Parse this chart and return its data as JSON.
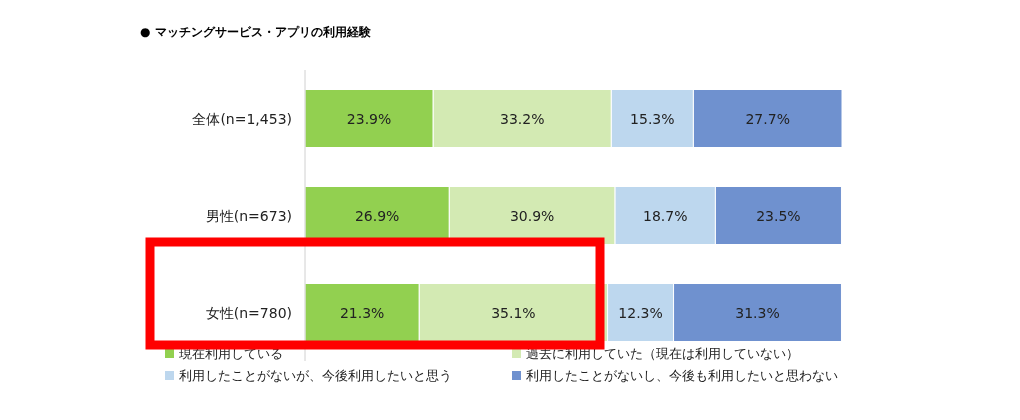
{
  "chart_data": {
    "type": "bar",
    "title": "● マッチングサービス・アプリの利用経験",
    "orientation": "horizontal",
    "stacked": true,
    "legend": "bottom",
    "categories": [
      "全体(n=1,453)",
      "男性(n=673)",
      "女性(n=780)"
    ],
    "series": [
      {
        "name": "現在利用している",
        "color": "#92d050",
        "values": [
          23.9,
          26.9,
          21.3
        ],
        "value_labels": [
          "23.9%",
          "26.9%",
          "21.3%"
        ]
      },
      {
        "name": "過去に利用していた（現在は利用していない）",
        "color": "#d3eab3",
        "values": [
          33.2,
          30.9,
          35.1
        ],
        "value_labels": [
          "33.2%",
          "30.9%",
          "35.1%"
        ]
      },
      {
        "name": "利用したことがないが、今後利用したいと思う",
        "color": "#bdd7ee",
        "values": [
          15.3,
          18.7,
          12.3
        ],
        "value_labels": [
          "15.3%",
          "18.7%",
          "12.3%"
        ]
      },
      {
        "name": "利用したことがないし、今後も利用したいと思わない",
        "color": "#6f91cf",
        "values": [
          27.7,
          23.5,
          31.3
        ],
        "value_labels": [
          "27.7%",
          "23.5%",
          "31.3%"
        ]
      }
    ]
  }
}
